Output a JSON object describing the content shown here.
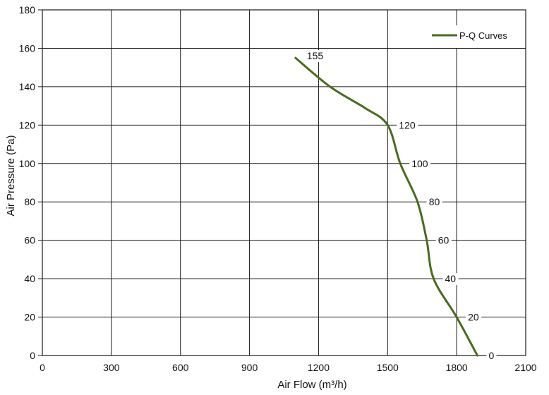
{
  "chart_data": {
    "type": "line",
    "title": "",
    "xlabel": "Air Flow  (m³/h)",
    "ylabel": "Air Pressure  (Pa)",
    "xlim": [
      0,
      2100
    ],
    "ylim": [
      0,
      180
    ],
    "x_ticks": [
      0,
      300,
      600,
      900,
      1200,
      1500,
      1800,
      2100
    ],
    "y_ticks": [
      0,
      20,
      40,
      60,
      80,
      100,
      120,
      140,
      160,
      180
    ],
    "grid": true,
    "legend_position": "top-right",
    "series": [
      {
        "name": "P-Q Curves",
        "color": "#4a6b1c",
        "points": [
          {
            "x": 1100,
            "y": 155,
            "label": "155"
          },
          {
            "x": 1250,
            "y": 140
          },
          {
            "x": 1400,
            "y": 129
          },
          {
            "x": 1500,
            "y": 120,
            "label": "120"
          },
          {
            "x": 1555,
            "y": 100,
            "label": "100"
          },
          {
            "x": 1630,
            "y": 80,
            "label": "80"
          },
          {
            "x": 1670,
            "y": 60,
            "label": "60"
          },
          {
            "x": 1700,
            "y": 40,
            "label": "40"
          },
          {
            "x": 1800,
            "y": 20,
            "label": "20"
          },
          {
            "x": 1890,
            "y": 0,
            "label": "0"
          }
        ]
      }
    ]
  }
}
